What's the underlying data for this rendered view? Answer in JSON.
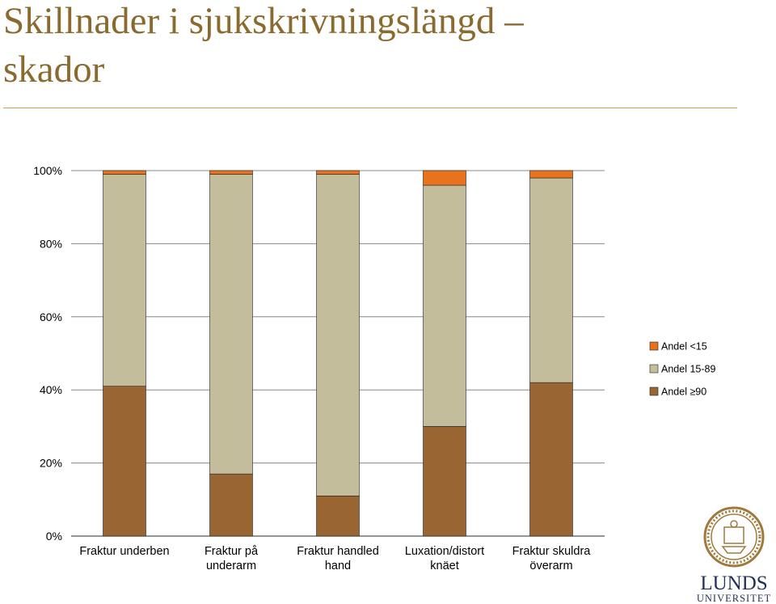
{
  "title_line1": "Skillnader i sjukskrivningslängd –",
  "title_line2": "skador",
  "colors": {
    "andel_lt15": "#e8731c",
    "andel_15_89": "#c4bd9b",
    "andel_ge90": "#996633",
    "title": "#8a6a2e",
    "gridline": "#888888"
  },
  "chart_data": {
    "type": "bar",
    "stacked": true,
    "categories": [
      [
        "Fraktur underben"
      ],
      [
        "Fraktur på",
        "underarm"
      ],
      [
        "Fraktur handled",
        "hand"
      ],
      [
        "Luxation/distort",
        "knäet"
      ],
      [
        "Fraktur skuldra",
        "överarm"
      ]
    ],
    "series": [
      {
        "name": "Andel ≥90",
        "color": "#996633",
        "values": [
          41,
          17,
          11,
          30,
          42
        ]
      },
      {
        "name": "Andel 15-89",
        "color": "#c4bd9b",
        "values": [
          58,
          82,
          88,
          66,
          56
        ]
      },
      {
        "name": "Andel <15",
        "color": "#e8731c",
        "values": [
          1,
          1,
          1,
          4,
          2
        ]
      }
    ],
    "ylim": [
      0,
      100
    ],
    "yticks": [
      "0%",
      "20%",
      "40%",
      "60%",
      "80%",
      "100%"
    ],
    "legend_order": [
      "Andel <15",
      "Andel 15-89",
      "Andel ≥90"
    ],
    "legend_position": "right",
    "grid": true
  },
  "logo": {
    "name_line1": "LUNDS",
    "name_line2": "UNIVERSITET"
  }
}
